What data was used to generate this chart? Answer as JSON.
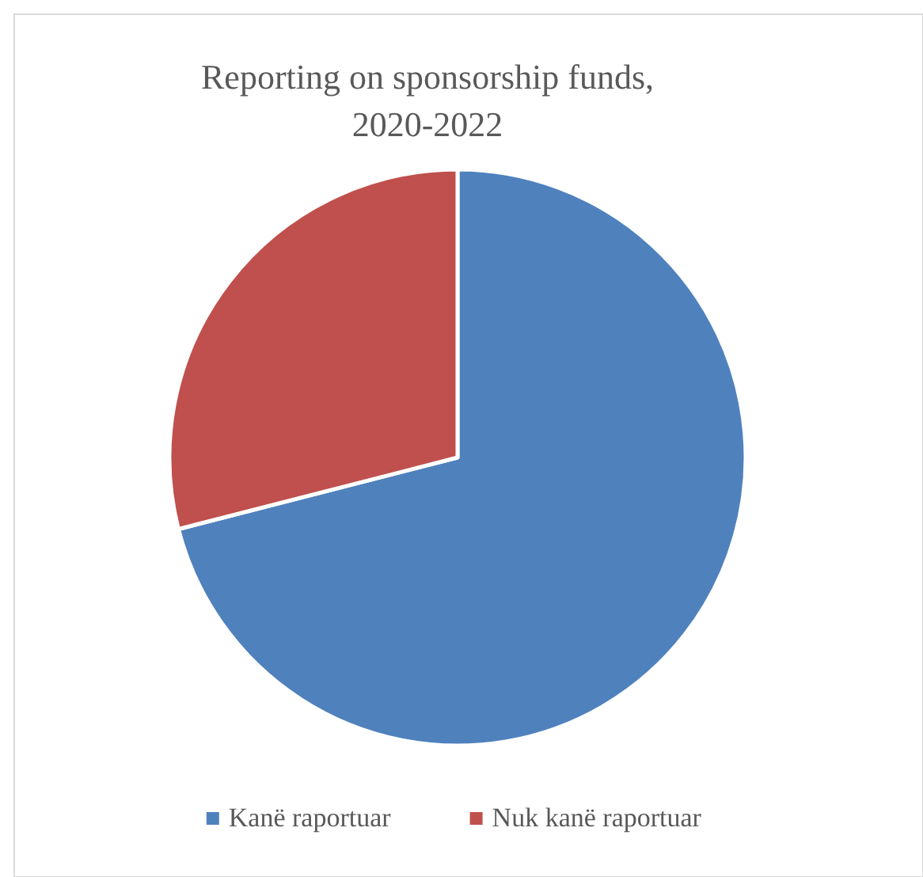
{
  "chart_data": {
    "type": "pie",
    "title": "Reporting on sponsorship funds,\n2020-2022",
    "categories": [
      "Kanë raportuar",
      "Nuk kanë raportuar"
    ],
    "values": [
      71,
      29
    ],
    "colors": [
      "#4f81bd",
      "#c0504d"
    ],
    "legend": "bottom"
  }
}
